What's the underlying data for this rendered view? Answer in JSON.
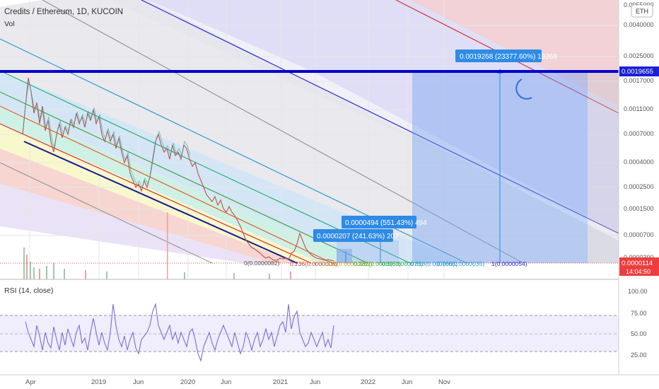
{
  "header": {
    "title": "Credits / Ethereum, 1D, KUCOIN",
    "vol_label": "Vol",
    "currency_badge": "ETH"
  },
  "price_axis": {
    "ticks": [
      "0.0055000",
      "0.0040000",
      "0.0025000",
      "0.0017000",
      "0.0011000",
      "0.0007000",
      "0.0004000",
      "0.0002500",
      "0.0001500",
      "0.0000700",
      "0.0000300"
    ],
    "current_price_label": "0.0019655",
    "last_price_label": "0.0000114",
    "countdown": "14:04:50"
  },
  "annotations": {
    "target_box": "0.0019268 (23377.60%) 19268",
    "mid_box_1": "0.0000494 (551.43%) 494",
    "mid_box_2": "0.0000207 (241.63%) 207",
    "fib_zero": "0(0.0000082)",
    "fib_236": "0.236(0.0000008)",
    "fib_236b": "0.236(0.00000282)",
    "fib_382": "0.382(0.0000050)",
    "fib_5": "0.5(0.0000078)",
    "fib_618": "0.618(0.0000065)",
    "fib_786": "0.786(0.0000035)",
    "fib_one": "1(0.0000054)"
  },
  "time_axis": [
    "Apr",
    "2019",
    "Jun",
    "2020",
    "Jun",
    "2021",
    "Jun",
    "2022",
    "Jun",
    "Nov"
  ],
  "rsi": {
    "title": "RSI (14, close)",
    "ticks": [
      "100.00",
      "75.00",
      "50.00",
      "25.00"
    ]
  },
  "colors": {
    "accent_blue": "#0000cc",
    "candle_up": "#26a69a",
    "candle_down": "#ef5350",
    "rsi_line": "#7b6fd6",
    "label_blue": "#2e8be6",
    "current_price_tag": "#1b1fd6",
    "last_price_tag": "#ef3d3d"
  }
}
